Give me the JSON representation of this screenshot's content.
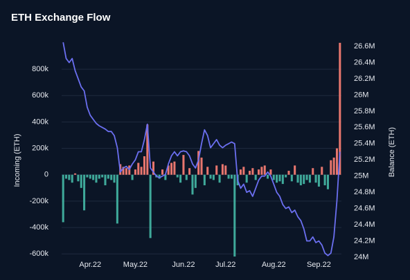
{
  "chart_data": {
    "type": "bar",
    "title": "ETH Exchange Flow",
    "y_label": "Incoming (ETH)",
    "y2_label": "Balance (ETH)",
    "categories": [
      null,
      null,
      null,
      null,
      null,
      null,
      null,
      null,
      null,
      "Apr.22",
      null,
      null,
      null,
      null,
      null,
      null,
      null,
      null,
      null,
      null,
      null,
      null,
      null,
      null,
      "May.22",
      null,
      null,
      null,
      null,
      null,
      null,
      null,
      null,
      null,
      null,
      null,
      null,
      null,
      null,
      null,
      "Jun.22",
      null,
      null,
      null,
      null,
      null,
      null,
      null,
      null,
      null,
      null,
      null,
      null,
      null,
      "Jul.22",
      null,
      null,
      null,
      null,
      null,
      null,
      null,
      null,
      null,
      null,
      null,
      null,
      null,
      null,
      null,
      "Aug.22",
      null,
      null,
      null,
      null,
      null,
      null,
      null,
      null,
      null,
      null,
      null,
      null,
      null,
      null,
      "Sep.22",
      null,
      null,
      null,
      null,
      null,
      null,
      null
    ],
    "ylim": [
      -625000,
      1010000
    ],
    "yticks": [
      {
        "value": -600000,
        "label": "-600k"
      },
      {
        "value": -400000,
        "label": "-400k"
      },
      {
        "value": -200000,
        "label": "-200k"
      },
      0,
      {
        "value": 200000,
        "label": "200k"
      },
      {
        "value": 400000,
        "label": "400k"
      },
      {
        "value": 600000,
        "label": "600k"
      },
      {
        "value": 800000,
        "label": "800k"
      }
    ],
    "y2lim": [
      24000000,
      26660000
    ],
    "y2ticks": [
      {
        "value": 24000000,
        "label": "24M"
      },
      {
        "value": 24200000,
        "label": "24.2M"
      },
      {
        "value": 24400000,
        "label": "24.4M"
      },
      {
        "value": 24600000,
        "label": "24.6M"
      },
      {
        "value": 24800000,
        "label": "24.8M"
      },
      {
        "value": 25000000,
        "label": "25M"
      },
      {
        "value": 25200000,
        "label": "25.2M"
      },
      {
        "value": 25400000,
        "label": "25.4M"
      },
      {
        "value": 25600000,
        "label": "25.6M"
      },
      {
        "value": 25800000,
        "label": "25.8M"
      },
      {
        "value": 26000000,
        "label": "26M"
      },
      {
        "value": 26200000,
        "label": "26.2M"
      },
      {
        "value": 26400000,
        "label": "26.4M"
      },
      {
        "value": 26600000,
        "label": "26.6M"
      }
    ],
    "grid": true,
    "series": [
      {
        "type": "bar",
        "color": "#e8766e",
        "negative_color": "#3fa99a",
        "values": [
          -360000,
          -30000,
          -40000,
          -60000,
          10000,
          -50000,
          -100000,
          -270000,
          -20000,
          -30000,
          -40000,
          -60000,
          -30000,
          -20000,
          -80000,
          -30000,
          -40000,
          -60000,
          -370000,
          80000,
          60000,
          50000,
          70000,
          -40000,
          40000,
          90000,
          60000,
          140000,
          380000,
          -480000,
          100000,
          -20000,
          -30000,
          40000,
          -40000,
          70000,
          90000,
          100000,
          -20000,
          -60000,
          150000,
          -40000,
          50000,
          -150000,
          -100000,
          180000,
          130000,
          -80000,
          60000,
          -30000,
          -40000,
          70000,
          -60000,
          80000,
          70000,
          -30000,
          -30000,
          -620000,
          -80000,
          40000,
          60000,
          -60000,
          30000,
          50000,
          -40000,
          40000,
          60000,
          70000,
          -30000,
          40000,
          -40000,
          -60000,
          -50000,
          -70000,
          -20000,
          30000,
          -50000,
          70000,
          -60000,
          -80000,
          -70000,
          -40000,
          -60000,
          50000,
          -60000,
          -90000,
          60000,
          -80000,
          -110000,
          110000,
          130000,
          200000,
          1000000
        ]
      },
      {
        "type": "line",
        "axis": "y2",
        "color": "#6b6ff0",
        "values": [
          26650000,
          26450000,
          26400000,
          26450000,
          26300000,
          26200000,
          26100000,
          26050000,
          25850000,
          25750000,
          25700000,
          25650000,
          25620000,
          25600000,
          25580000,
          25550000,
          25550000,
          25500000,
          25350000,
          25050000,
          25100000,
          25120000,
          25080000,
          25150000,
          25200000,
          25300000,
          25300000,
          25450000,
          25640000,
          25100000,
          25050000,
          25000000,
          24980000,
          25000000,
          25020000,
          25150000,
          25250000,
          25300000,
          25250000,
          25300000,
          25310000,
          25300000,
          25250000,
          25150000,
          25100000,
          25200000,
          25400000,
          25570000,
          25500000,
          25350000,
          25400000,
          25450000,
          25380000,
          25350000,
          25380000,
          25400000,
          25420000,
          25400000,
          24950000,
          24850000,
          24900000,
          24800000,
          24820000,
          24750000,
          24850000,
          24950000,
          25000000,
          25000000,
          25050000,
          25000000,
          24900000,
          24800000,
          24750000,
          24650000,
          24600000,
          24620000,
          24550000,
          24580000,
          24500000,
          24450000,
          24350000,
          24200000,
          24200000,
          24250000,
          24180000,
          24200000,
          24150000,
          24050000,
          24020000,
          24050000,
          24250000,
          24700000,
          25300000
        ]
      }
    ]
  }
}
